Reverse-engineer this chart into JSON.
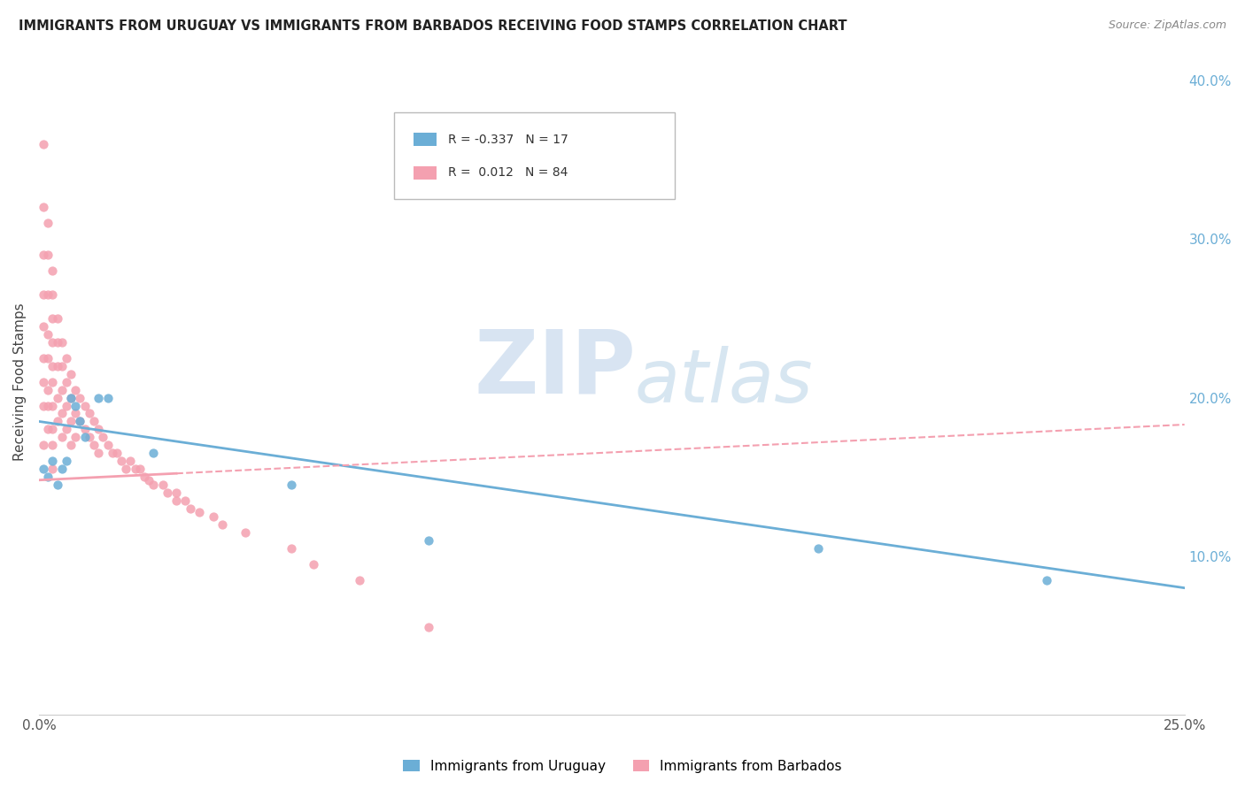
{
  "title": "IMMIGRANTS FROM URUGUAY VS IMMIGRANTS FROM BARBADOS RECEIVING FOOD STAMPS CORRELATION CHART",
  "source": "Source: ZipAtlas.com",
  "ylabel": "Receiving Food Stamps",
  "right_yticks": [
    "40.0%",
    "30.0%",
    "20.0%",
    "10.0%"
  ],
  "right_ytick_vals": [
    0.4,
    0.3,
    0.2,
    0.1
  ],
  "legend_r_uruguay": "-0.337",
  "legend_n_uruguay": "17",
  "legend_r_barbados": "0.012",
  "legend_n_barbados": "84",
  "uruguay_color": "#6baed6",
  "barbados_color": "#f4a0b0",
  "uruguay_scatter_x": [
    0.001,
    0.002,
    0.003,
    0.004,
    0.005,
    0.006,
    0.007,
    0.008,
    0.009,
    0.01,
    0.013,
    0.015,
    0.025,
    0.055,
    0.085,
    0.17,
    0.22
  ],
  "uruguay_scatter_y": [
    0.155,
    0.15,
    0.16,
    0.145,
    0.155,
    0.16,
    0.2,
    0.195,
    0.185,
    0.175,
    0.2,
    0.2,
    0.165,
    0.145,
    0.11,
    0.105,
    0.085
  ],
  "barbados_scatter_x": [
    0.001,
    0.001,
    0.001,
    0.001,
    0.001,
    0.001,
    0.001,
    0.001,
    0.001,
    0.002,
    0.002,
    0.002,
    0.002,
    0.002,
    0.002,
    0.002,
    0.002,
    0.003,
    0.003,
    0.003,
    0.003,
    0.003,
    0.003,
    0.003,
    0.003,
    0.003,
    0.003,
    0.004,
    0.004,
    0.004,
    0.004,
    0.004,
    0.005,
    0.005,
    0.005,
    0.005,
    0.005,
    0.006,
    0.006,
    0.006,
    0.006,
    0.007,
    0.007,
    0.007,
    0.007,
    0.008,
    0.008,
    0.008,
    0.009,
    0.009,
    0.01,
    0.01,
    0.011,
    0.011,
    0.012,
    0.012,
    0.013,
    0.013,
    0.014,
    0.015,
    0.016,
    0.017,
    0.018,
    0.019,
    0.02,
    0.021,
    0.022,
    0.023,
    0.024,
    0.025,
    0.027,
    0.028,
    0.03,
    0.03,
    0.032,
    0.033,
    0.035,
    0.038,
    0.04,
    0.045,
    0.055,
    0.06,
    0.07,
    0.085
  ],
  "barbados_scatter_y": [
    0.36,
    0.32,
    0.29,
    0.265,
    0.245,
    0.225,
    0.21,
    0.195,
    0.17,
    0.31,
    0.29,
    0.265,
    0.24,
    0.225,
    0.205,
    0.195,
    0.18,
    0.28,
    0.265,
    0.25,
    0.235,
    0.22,
    0.21,
    0.195,
    0.18,
    0.17,
    0.155,
    0.25,
    0.235,
    0.22,
    0.2,
    0.185,
    0.235,
    0.22,
    0.205,
    0.19,
    0.175,
    0.225,
    0.21,
    0.195,
    0.18,
    0.215,
    0.2,
    0.185,
    0.17,
    0.205,
    0.19,
    0.175,
    0.2,
    0.185,
    0.195,
    0.18,
    0.19,
    0.175,
    0.185,
    0.17,
    0.18,
    0.165,
    0.175,
    0.17,
    0.165,
    0.165,
    0.16,
    0.155,
    0.16,
    0.155,
    0.155,
    0.15,
    0.148,
    0.145,
    0.145,
    0.14,
    0.14,
    0.135,
    0.135,
    0.13,
    0.128,
    0.125,
    0.12,
    0.115,
    0.105,
    0.095,
    0.085,
    0.055
  ],
  "xlim": [
    0.0,
    0.25
  ],
  "ylim": [
    0.0,
    0.42
  ],
  "watermark_zip": "ZIP",
  "watermark_atlas": "atlas",
  "grid_color": "#dedede",
  "background_color": "#ffffff",
  "trendline_barbados_x0": 0.0,
  "trendline_barbados_y0": 0.148,
  "trendline_barbados_x1": 0.25,
  "trendline_barbados_y1": 0.183,
  "trendline_uruguay_x0": 0.0,
  "trendline_uruguay_y0": 0.185,
  "trendline_uruguay_x1": 0.25,
  "trendline_uruguay_y1": 0.08
}
